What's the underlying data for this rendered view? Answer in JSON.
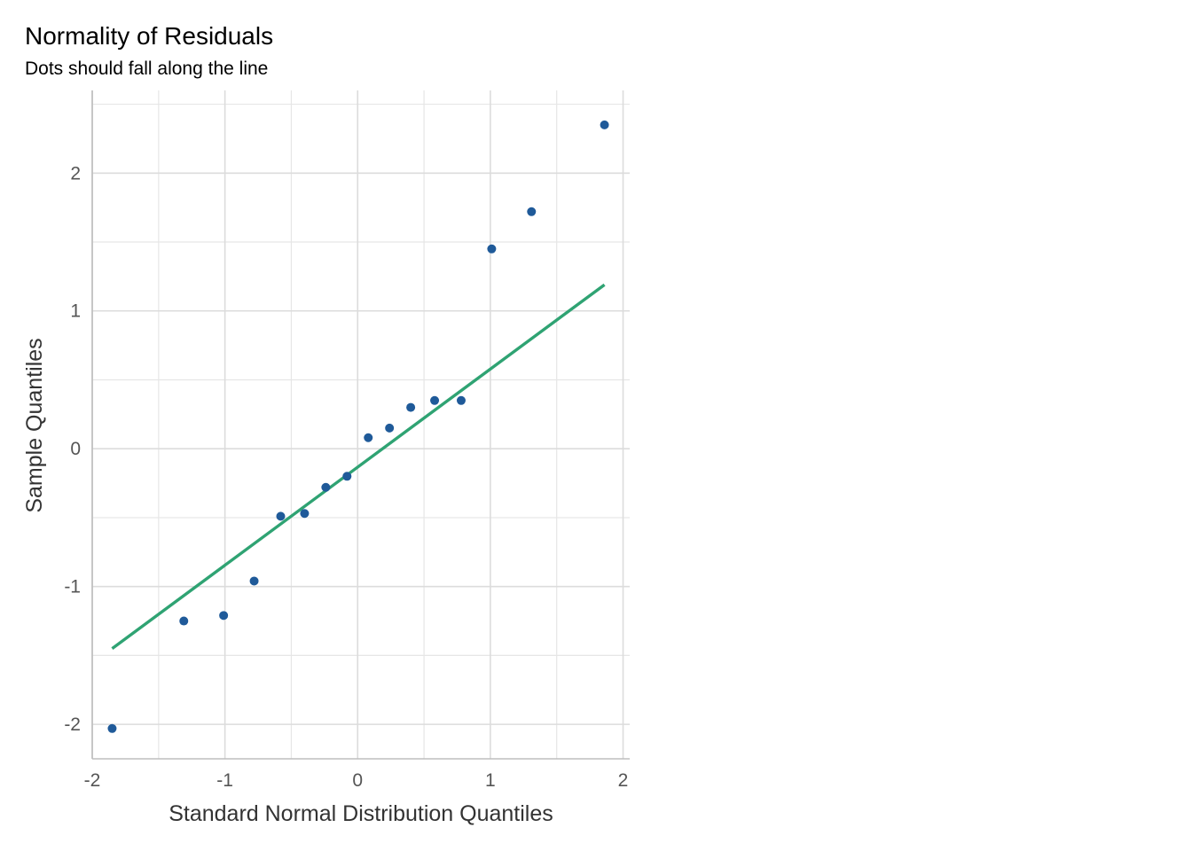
{
  "chart_data": {
    "type": "scatter",
    "title": "Normality of Residuals",
    "subtitle": "Dots should fall along the line",
    "xlabel": "Standard Normal Distribution Quantiles",
    "ylabel": "Sample Quantiles",
    "xlim": [
      -2.0,
      2.05
    ],
    "ylim": [
      -2.25,
      2.6
    ],
    "x_ticks": [
      -2,
      -1,
      0,
      1,
      2
    ],
    "x_tick_labels": [
      "-2",
      "-1",
      "0",
      "1",
      "2"
    ],
    "y_ticks": [
      -2,
      -1,
      0,
      1,
      2
    ],
    "y_tick_labels": [
      "-2",
      "-1",
      "0",
      "1",
      "2"
    ],
    "grid": true,
    "colors": {
      "points": "#1f5a99",
      "line": "#2fa373"
    },
    "points": [
      {
        "x": -1.85,
        "y": -2.03
      },
      {
        "x": -1.31,
        "y": -1.25
      },
      {
        "x": -1.01,
        "y": -1.21
      },
      {
        "x": -0.78,
        "y": -0.96
      },
      {
        "x": -0.58,
        "y": -0.49
      },
      {
        "x": -0.4,
        "y": -0.47
      },
      {
        "x": -0.24,
        "y": -0.28
      },
      {
        "x": -0.08,
        "y": -0.2
      },
      {
        "x": 0.08,
        "y": 0.08
      },
      {
        "x": 0.24,
        "y": 0.15
      },
      {
        "x": 0.4,
        "y": 0.3
      },
      {
        "x": 0.58,
        "y": 0.35
      },
      {
        "x": 0.78,
        "y": 0.35
      },
      {
        "x": 1.01,
        "y": 1.45
      },
      {
        "x": 1.31,
        "y": 1.72
      },
      {
        "x": 1.86,
        "y": 2.35
      }
    ],
    "reference_line": {
      "x": [
        -1.85,
        1.86
      ],
      "y": [
        -1.45,
        1.19
      ]
    }
  }
}
